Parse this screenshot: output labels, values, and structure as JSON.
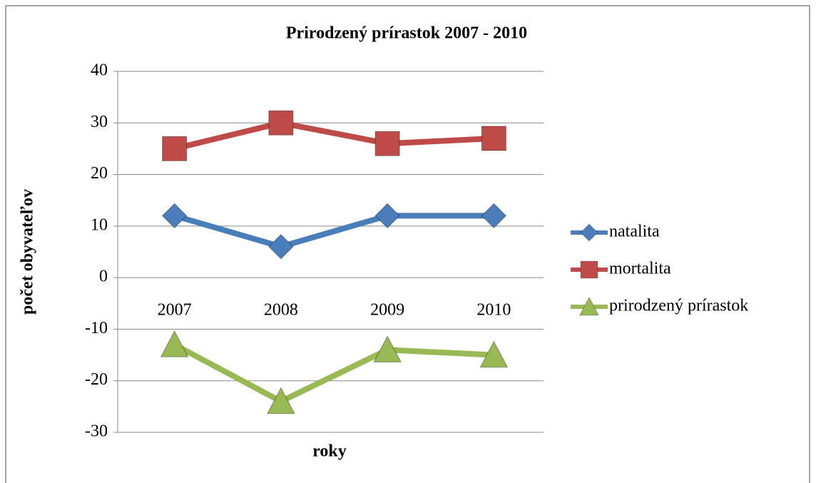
{
  "chart_data": {
    "type": "line",
    "title": "Prirodzený prírastok 2007 - 2010",
    "x_label": "roky",
    "y_label": "počet obyvateľov",
    "categories": [
      "2007",
      "2008",
      "2009",
      "2010"
    ],
    "series": [
      {
        "name": "natalita",
        "color": "#4a7ebb",
        "marker": "diamond",
        "values": [
          12,
          6,
          12,
          12
        ]
      },
      {
        "name": "mortalita",
        "color": "#be4b48",
        "marker": "square",
        "values": [
          25,
          30,
          26,
          27
        ]
      },
      {
        "name": "prirodzený prírastok",
        "color": "#98b954",
        "marker": "triangle",
        "values": [
          -13,
          -24,
          -14,
          -15
        ]
      }
    ],
    "ylim": [
      -30,
      40
    ],
    "yticks": [
      -30,
      -20,
      -10,
      0,
      10,
      20,
      30,
      40
    ],
    "grid": true,
    "legend": "right"
  }
}
